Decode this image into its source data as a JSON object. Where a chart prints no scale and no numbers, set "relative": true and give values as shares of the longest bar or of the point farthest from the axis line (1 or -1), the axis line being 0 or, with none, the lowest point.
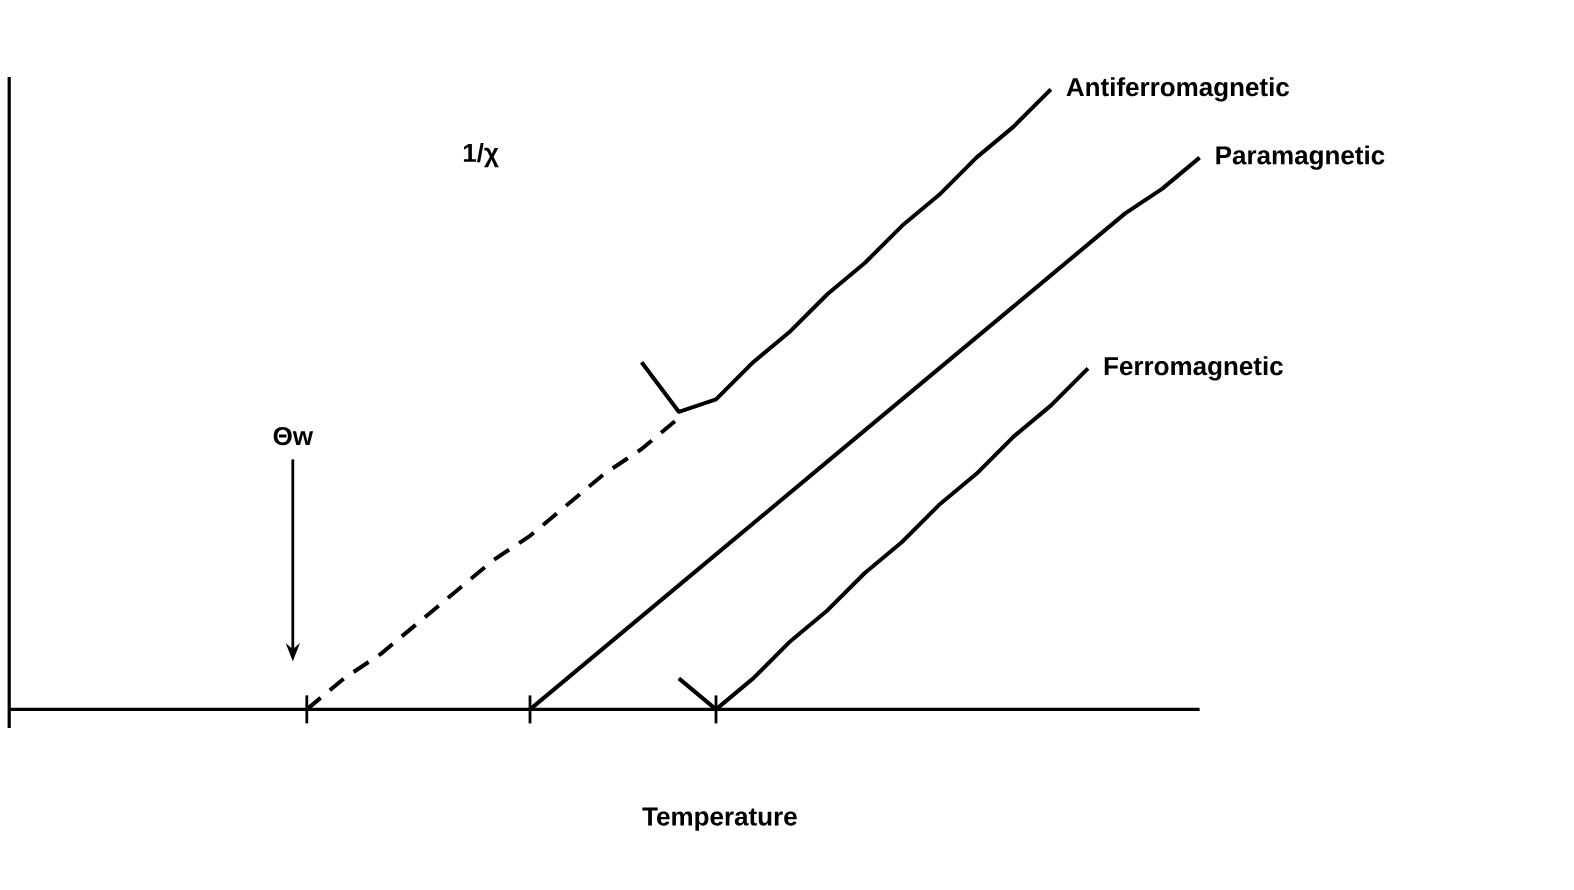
{
  "chart_data": {
    "type": "line",
    "relative": true,
    "xlabel": "Temperature",
    "ylabel": "1/χ",
    "categories": [
      null,
      null,
      null,
      null,
      null,
      null,
      null,
      null,
      null,
      null,
      null,
      null,
      null,
      null,
      null,
      null,
      null,
      null,
      null,
      null,
      null,
      null,
      null,
      null,
      null,
      null,
      null,
      null,
      null,
      null,
      null,
      null,
      null
    ],
    "series": [
      {
        "name": "Antiferromagnetic",
        "color": "#000000",
        "values": [
          null,
          null,
          null,
          null,
          null,
          null,
          null,
          null,
          null,
          null,
          null,
          null,
          null,
          null,
          null,
          null,
          null,
          0.56,
          0.48,
          0.5,
          0.56,
          0.61,
          0.67,
          0.72,
          0.78,
          0.83,
          0.89,
          0.94,
          1.0,
          null,
          null,
          null,
          null
        ]
      },
      {
        "name": "Paramagnetic",
        "color": "#000000",
        "values": [
          null,
          null,
          null,
          null,
          null,
          null,
          null,
          null,
          null,
          null,
          null,
          null,
          null,
          null,
          0,
          0.05,
          0.1,
          0.15,
          0.2,
          0.25,
          0.3,
          0.35,
          0.4,
          0.45,
          0.5,
          0.55,
          0.6,
          0.65,
          0.7,
          0.75,
          0.8,
          0.84,
          0.89
        ]
      },
      {
        "name": "Ferromagnetic",
        "color": "#000000",
        "values": [
          null,
          null,
          null,
          null,
          null,
          null,
          null,
          null,
          null,
          null,
          null,
          null,
          null,
          null,
          null,
          null,
          null,
          null,
          0.05,
          0,
          0.05,
          0.11,
          0.16,
          0.22,
          0.27,
          0.33,
          0.38,
          0.44,
          0.49,
          0.55,
          null,
          null,
          null
        ]
      },
      {
        "color": "#000000",
        "line_style": "dashed",
        "values": [
          null,
          null,
          null,
          null,
          null,
          null,
          null,
          null,
          0,
          0.05,
          0.09,
          0.14,
          0.19,
          0.24,
          0.28,
          0.33,
          0.38,
          0.42,
          0.47,
          null,
          null,
          null,
          null,
          null,
          null,
          null,
          null,
          null,
          null,
          null,
          null,
          null,
          null
        ]
      }
    ],
    "annotations": [
      "Θw"
    ]
  }
}
